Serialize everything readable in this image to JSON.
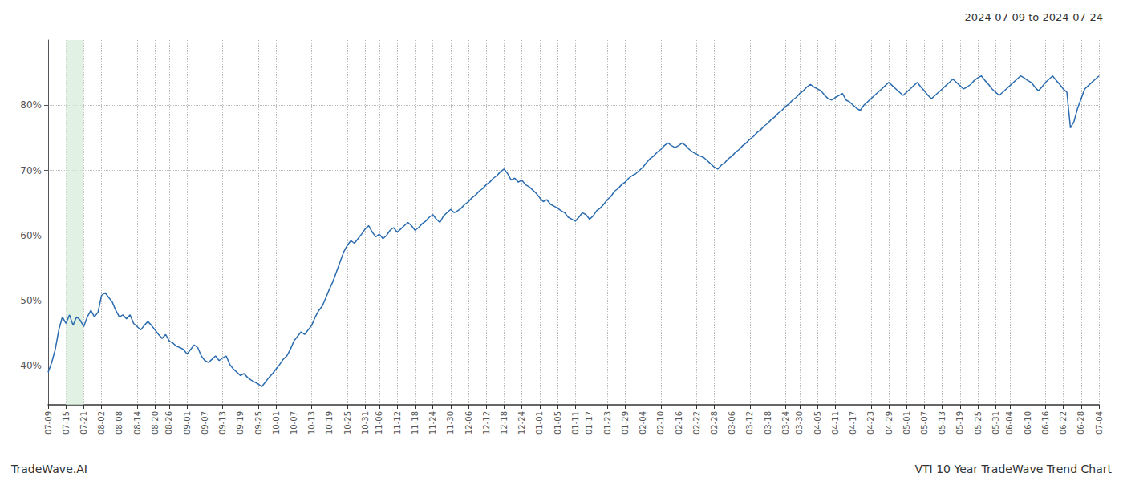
{
  "chart_data": {
    "type": "line",
    "title": "2024-07-09 to 2024-07-24",
    "annotations": [
      "TradeWave.AI",
      "VTI 10 Year TradeWave Trend Chart"
    ],
    "color": "#2b6cb0",
    "grid": true,
    "ylim": [
      34,
      90
    ],
    "yticks": [
      {
        "value": 40,
        "label": "40%"
      },
      {
        "value": 50,
        "label": "50%"
      },
      {
        "value": 60,
        "label": "60%"
      },
      {
        "value": 70,
        "label": "70%"
      },
      {
        "value": 80,
        "label": "80%"
      }
    ],
    "shaded": {
      "from": "07-15",
      "to": "07-21",
      "color": "#d4edda"
    },
    "categories": [
      "07-09",
      null,
      null,
      null,
      null,
      "07-15",
      null,
      null,
      null,
      null,
      "07-21",
      null,
      null,
      null,
      null,
      "08-02",
      null,
      null,
      null,
      null,
      "08-08",
      null,
      null,
      null,
      null,
      "08-14",
      null,
      null,
      null,
      null,
      "08-20",
      null,
      null,
      null,
      "08-26",
      null,
      null,
      null,
      null,
      "09-01",
      null,
      null,
      null,
      null,
      "09-07",
      null,
      null,
      null,
      null,
      "09-13",
      null,
      null,
      null,
      null,
      "09-19",
      null,
      null,
      null,
      null,
      "09-25",
      null,
      null,
      null,
      null,
      "10-01",
      null,
      null,
      null,
      null,
      "10-07",
      null,
      null,
      null,
      null,
      "10-13",
      null,
      null,
      null,
      null,
      "10-19",
      null,
      null,
      null,
      null,
      "10-25",
      null,
      null,
      null,
      null,
      "10-31",
      null,
      null,
      null,
      "11-06",
      null,
      null,
      null,
      null,
      "11-12",
      null,
      null,
      null,
      null,
      "11-18",
      null,
      null,
      null,
      null,
      "11-24",
      null,
      null,
      null,
      null,
      "11-30",
      null,
      null,
      null,
      null,
      "12-06",
      null,
      null,
      null,
      null,
      "12-12",
      null,
      null,
      null,
      null,
      "12-18",
      null,
      null,
      null,
      null,
      "12-24",
      null,
      null,
      null,
      null,
      "01-01",
      null,
      null,
      null,
      null,
      "01-05",
      null,
      null,
      null,
      null,
      "01-11",
      null,
      null,
      null,
      "01-17",
      null,
      null,
      null,
      null,
      "01-23",
      null,
      null,
      null,
      null,
      "01-29",
      null,
      null,
      null,
      null,
      "02-04",
      null,
      null,
      null,
      null,
      "02-10",
      null,
      null,
      null,
      null,
      "02-16",
      null,
      null,
      null,
      null,
      "02-22",
      null,
      null,
      null,
      null,
      "02-28",
      null,
      null,
      null,
      null,
      "03-06",
      null,
      null,
      null,
      null,
      "03-12",
      null,
      null,
      null,
      null,
      "03-18",
      null,
      null,
      null,
      null,
      "03-24",
      null,
      null,
      null,
      "03-30",
      null,
      null,
      null,
      null,
      "04-05",
      null,
      null,
      null,
      null,
      "04-11",
      null,
      null,
      null,
      null,
      "04-17",
      null,
      null,
      null,
      null,
      "04-23",
      null,
      null,
      null,
      null,
      "04-29",
      null,
      null,
      null,
      null,
      "05-01",
      null,
      null,
      null,
      null,
      "05-07",
      null,
      null,
      null,
      null,
      "05-13",
      null,
      null,
      null,
      null,
      "05-19",
      null,
      null,
      null,
      null,
      "05-25",
      null,
      null,
      null,
      null,
      "05-31",
      null,
      null,
      null,
      "06-04",
      null,
      null,
      null,
      null,
      "06-10",
      null,
      null,
      null,
      null,
      "06-16",
      null,
      null,
      null,
      null,
      "06-22",
      null,
      null,
      null,
      null,
      "06-28",
      null,
      null,
      null,
      null,
      "07-04"
    ],
    "values": [
      39.0,
      40.5,
      42.5,
      45.5,
      47.5,
      46.5,
      47.8,
      46.2,
      47.5,
      47.0,
      46.0,
      47.5,
      48.5,
      47.5,
      48.2,
      50.8,
      51.2,
      50.5,
      49.8,
      48.5,
      47.5,
      47.8,
      47.2,
      47.8,
      46.5,
      46.0,
      45.5,
      46.2,
      46.8,
      46.2,
      45.5,
      44.8,
      44.2,
      44.8,
      43.8,
      43.5,
      43.0,
      42.8,
      42.5,
      41.8,
      42.5,
      43.2,
      42.8,
      41.5,
      40.8,
      40.5,
      41.0,
      41.5,
      40.8,
      41.2,
      41.5,
      40.2,
      39.5,
      39.0,
      38.5,
      38.8,
      38.2,
      37.8,
      37.5,
      37.2,
      36.8,
      37.5,
      38.2,
      38.8,
      39.5,
      40.2,
      41.0,
      41.5,
      42.5,
      43.8,
      44.5,
      45.2,
      44.8,
      45.5,
      46.2,
      47.5,
      48.5,
      49.2,
      50.5,
      51.8,
      53.0,
      54.5,
      56.0,
      57.5,
      58.5,
      59.2,
      58.8,
      59.5,
      60.2,
      61.0,
      61.5,
      60.5,
      59.8,
      60.2,
      59.5,
      60.0,
      60.8,
      61.2,
      60.5,
      61.0,
      61.5,
      62.0,
      61.5,
      60.8,
      61.2,
      61.8,
      62.2,
      62.8,
      63.2,
      62.5,
      62.0,
      63.0,
      63.5,
      64.0,
      63.5,
      63.8,
      64.2,
      64.8,
      65.2,
      65.8,
      66.2,
      66.8,
      67.2,
      67.8,
      68.2,
      68.8,
      69.2,
      69.8,
      70.2,
      69.5,
      68.5,
      68.8,
      68.2,
      68.5,
      67.8,
      67.5,
      67.0,
      66.5,
      65.8,
      65.2,
      65.5,
      64.8,
      64.5,
      64.2,
      63.8,
      63.5,
      62.8,
      62.5,
      62.2,
      62.8,
      63.5,
      63.2,
      62.5,
      63.0,
      63.8,
      64.2,
      64.8,
      65.5,
      66.0,
      66.8,
      67.2,
      67.8,
      68.2,
      68.8,
      69.2,
      69.5,
      70.0,
      70.5,
      71.2,
      71.8,
      72.2,
      72.8,
      73.2,
      73.8,
      74.2,
      73.8,
      73.5,
      73.8,
      74.2,
      73.8,
      73.2,
      72.8,
      72.5,
      72.2,
      72.0,
      71.5,
      71.0,
      70.5,
      70.2,
      70.8,
      71.2,
      71.8,
      72.2,
      72.8,
      73.2,
      73.8,
      74.2,
      74.8,
      75.2,
      75.8,
      76.2,
      76.8,
      77.2,
      77.8,
      78.2,
      78.8,
      79.2,
      79.8,
      80.2,
      80.8,
      81.2,
      81.8,
      82.2,
      82.8,
      83.2,
      82.8,
      82.5,
      82.2,
      81.5,
      81.0,
      80.8,
      81.2,
      81.5,
      81.8,
      80.8,
      80.5,
      80.0,
      79.5,
      79.2,
      80.0,
      80.5,
      81.0,
      81.5,
      82.0,
      82.5,
      83.0,
      83.5,
      83.0,
      82.5,
      82.0,
      81.5,
      82.0,
      82.5,
      83.0,
      83.5,
      82.8,
      82.2,
      81.5,
      81.0,
      81.5,
      82.0,
      82.5,
      83.0,
      83.5,
      84.0,
      83.5,
      83.0,
      82.5,
      82.8,
      83.2,
      83.8,
      84.2,
      84.5,
      83.8,
      83.2,
      82.5,
      82.0,
      81.5,
      82.0,
      82.5,
      83.0,
      83.5,
      84.0,
      84.5,
      84.2,
      83.8,
      83.5,
      82.8,
      82.2,
      82.8,
      83.5,
      84.0,
      84.5,
      83.8,
      83.2,
      82.5,
      82.0,
      76.5,
      77.5,
      79.5,
      81.0,
      82.5,
      83.0,
      83.5,
      84.0,
      84.5
    ]
  }
}
